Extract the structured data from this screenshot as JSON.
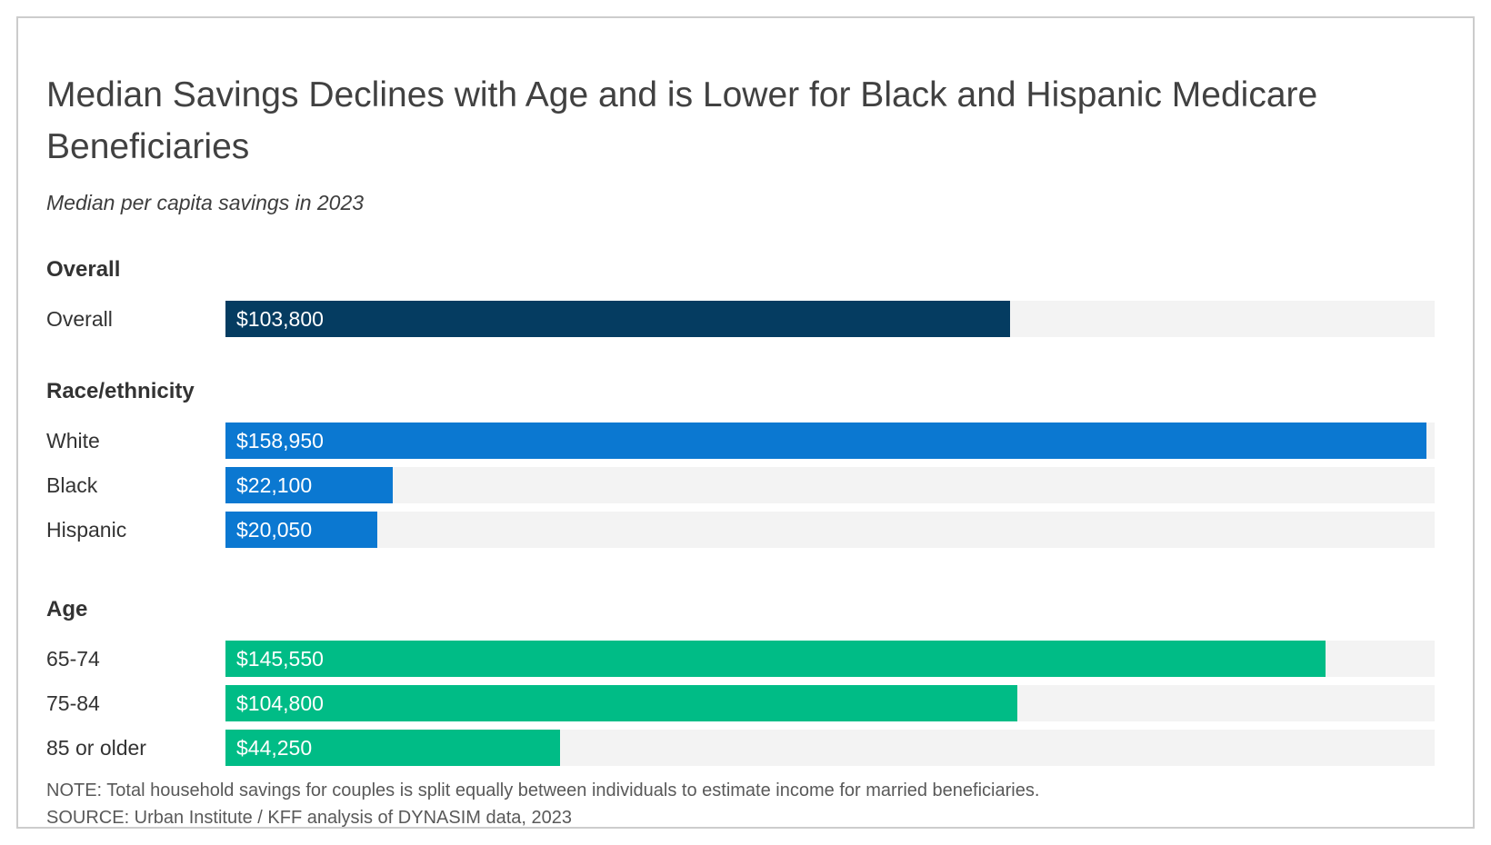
{
  "chart": {
    "title": "Median Savings Declines with Age and is Lower for Black and Hispanic Medicare Beneficiaries",
    "subtitle": "Median per capita savings in 2023",
    "axis_max": 160000,
    "track_color": "#F3F3F3",
    "sections": [
      {
        "header": "Overall",
        "bar_color": "#053C61",
        "rows": [
          {
            "label": "Overall",
            "value": 103800,
            "display": "$103,800"
          }
        ]
      },
      {
        "header": "Race/ethnicity",
        "bar_color": "#0B78D1",
        "rows": [
          {
            "label": "White",
            "value": 158950,
            "display": "$158,950"
          },
          {
            "label": "Black",
            "value": 22100,
            "display": "$22,100"
          },
          {
            "label": "Hispanic",
            "value": 20050,
            "display": "$20,050"
          }
        ]
      },
      {
        "header": "Age",
        "bar_color": "#00BC86",
        "rows": [
          {
            "label": "65-74",
            "value": 145550,
            "display": "$145,550"
          },
          {
            "label": "75-84",
            "value": 104800,
            "display": "$104,800"
          },
          {
            "label": "85 or older",
            "value": 44250,
            "display": "$44,250"
          }
        ]
      }
    ],
    "note": "NOTE: Total household savings for couples is split equally between individuals to estimate income for married beneficiaries.",
    "source": "SOURCE: Urban Institute / KFF analysis of DYNASIM data, 2023"
  },
  "chart_data": {
    "type": "bar",
    "orientation": "horizontal",
    "title": "Median Savings Declines with Age and is Lower for Black and Hispanic Medicare Beneficiaries",
    "subtitle": "Median per capita savings in 2023",
    "unit": "USD",
    "xlim": [
      0,
      160000
    ],
    "grid": false,
    "value_labels": "inside-left",
    "groups": [
      {
        "name": "Overall",
        "categories": [
          "Overall"
        ],
        "values": [
          103800
        ],
        "color": "#053C61"
      },
      {
        "name": "Race/ethnicity",
        "categories": [
          "White",
          "Black",
          "Hispanic"
        ],
        "values": [
          158950,
          22100,
          20050
        ],
        "color": "#0B78D1"
      },
      {
        "name": "Age",
        "categories": [
          "65-74",
          "75-84",
          "85 or older"
        ],
        "values": [
          145550,
          104800,
          44250
        ],
        "color": "#00BC86"
      }
    ],
    "note": "NOTE: Total household savings for couples is split equally between individuals to estimate income for married beneficiaries.",
    "source": "SOURCE: Urban Institute / KFF analysis of DYNASIM data, 2023"
  }
}
